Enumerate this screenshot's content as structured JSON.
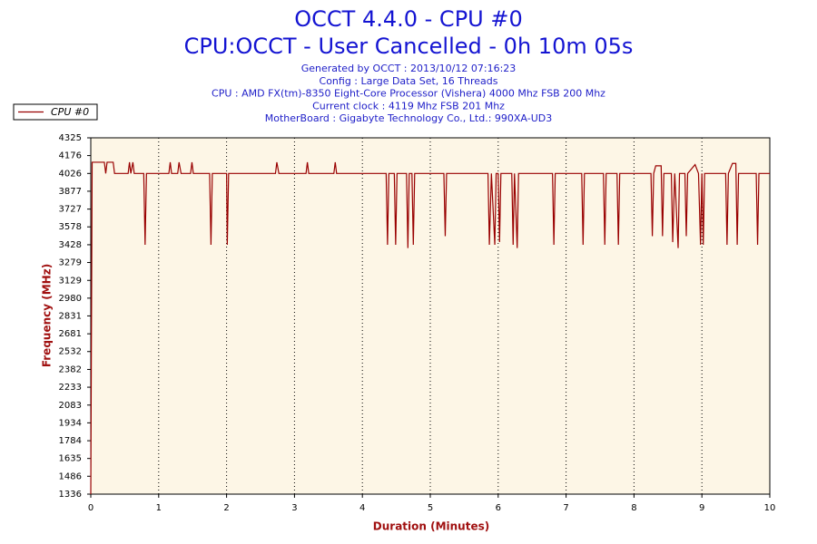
{
  "chart_data": {
    "type": "line",
    "title": "OCCT 4.4.0 - CPU #0",
    "subtitle": "CPU:OCCT - User Cancelled - 0h 10m 05s",
    "info": [
      "Generated by OCCT : 2013/10/12 07:16:23",
      "Config : Large Data Set, 16 Threads",
      "CPU : AMD FX(tm)-8350 Eight-Core Processor (Vishera) 4000 Mhz FSB 200 Mhz",
      "Current clock : 4119 Mhz FSB 201 Mhz",
      "MotherBoard : Gigabyte Technology Co., Ltd.: 990XA-UD3"
    ],
    "x_label": "Duration (Minutes)",
    "y_label": "Frequency (MHz)",
    "xlim": [
      0,
      10
    ],
    "xticks": [
      0,
      1,
      2,
      3,
      4,
      5,
      6,
      7,
      8,
      9,
      10
    ],
    "ylim": [
      1336,
      4325
    ],
    "yticks": [
      4325,
      4176,
      4026,
      3877,
      3727,
      3578,
      3428,
      3279,
      3129,
      2980,
      2831,
      2681,
      2532,
      2382,
      2233,
      2083,
      1934,
      1784,
      1635,
      1486,
      1336
    ],
    "grid": "x",
    "legend": "top-left",
    "x": [
      0,
      0.02,
      0.2,
      0.22,
      0.24,
      0.33,
      0.35,
      0.55,
      0.57,
      0.59,
      0.62,
      0.64,
      0.78,
      0.8,
      0.82,
      1.15,
      1.17,
      1.19,
      1.28,
      1.3,
      1.33,
      1.47,
      1.49,
      1.51,
      1.75,
      1.77,
      1.79,
      2.0,
      2.01,
      2.03,
      2.72,
      2.74,
      2.77,
      3.17,
      3.19,
      3.21,
      3.58,
      3.6,
      3.62,
      4.35,
      4.37,
      4.39,
      4.47,
      4.49,
      4.51,
      4.65,
      4.67,
      4.69,
      4.73,
      4.75,
      4.77,
      5.2,
      5.22,
      5.24,
      5.85,
      5.87,
      5.9,
      5.95,
      5.97,
      6.0,
      6.02,
      6.04,
      6.2,
      6.22,
      6.24,
      6.28,
      6.3,
      6.8,
      6.82,
      6.84,
      7.23,
      7.25,
      7.27,
      7.55,
      7.57,
      7.59,
      7.75,
      7.77,
      7.79,
      8.25,
      8.27,
      8.29,
      8.32,
      8.4,
      8.42,
      8.44,
      8.55,
      8.57,
      8.6,
      8.65,
      8.67,
      8.75,
      8.77,
      8.79,
      8.9,
      8.95,
      8.98,
      9.0,
      9.02,
      9.04,
      9.35,
      9.37,
      9.39,
      9.45,
      9.5,
      9.52,
      9.54,
      9.8,
      9.82,
      9.84,
      10
    ],
    "series": [
      {
        "name": "CPU #0",
        "color": "#990000",
        "values": [
          1336,
          4120,
          4120,
          4026,
          4120,
          4120,
          4026,
          4026,
          4120,
          4026,
          4120,
          4026,
          4026,
          3428,
          4026,
          4026,
          4120,
          4026,
          4026,
          4120,
          4026,
          4026,
          4120,
          4026,
          4026,
          3428,
          4026,
          4026,
          3428,
          4026,
          4026,
          4120,
          4026,
          4026,
          4120,
          4026,
          4026,
          4120,
          4026,
          4026,
          3428,
          4026,
          4026,
          3428,
          4026,
          4026,
          3400,
          4026,
          4026,
          3428,
          4026,
          4026,
          3500,
          4026,
          4026,
          3428,
          4026,
          3428,
          4026,
          4026,
          3450,
          4026,
          4026,
          3428,
          4026,
          3400,
          4026,
          4026,
          3428,
          4026,
          4026,
          3428,
          4026,
          4026,
          3428,
          4026,
          4026,
          3428,
          4026,
          4026,
          3500,
          4026,
          4090,
          4090,
          3500,
          4026,
          4026,
          3450,
          4026,
          3400,
          4026,
          4026,
          3500,
          4026,
          4100,
          4026,
          3428,
          4026,
          3428,
          4026,
          4026,
          3428,
          4026,
          4110,
          4110,
          3428,
          4026,
          4026,
          3428,
          4026,
          4026
        ]
      }
    ]
  }
}
